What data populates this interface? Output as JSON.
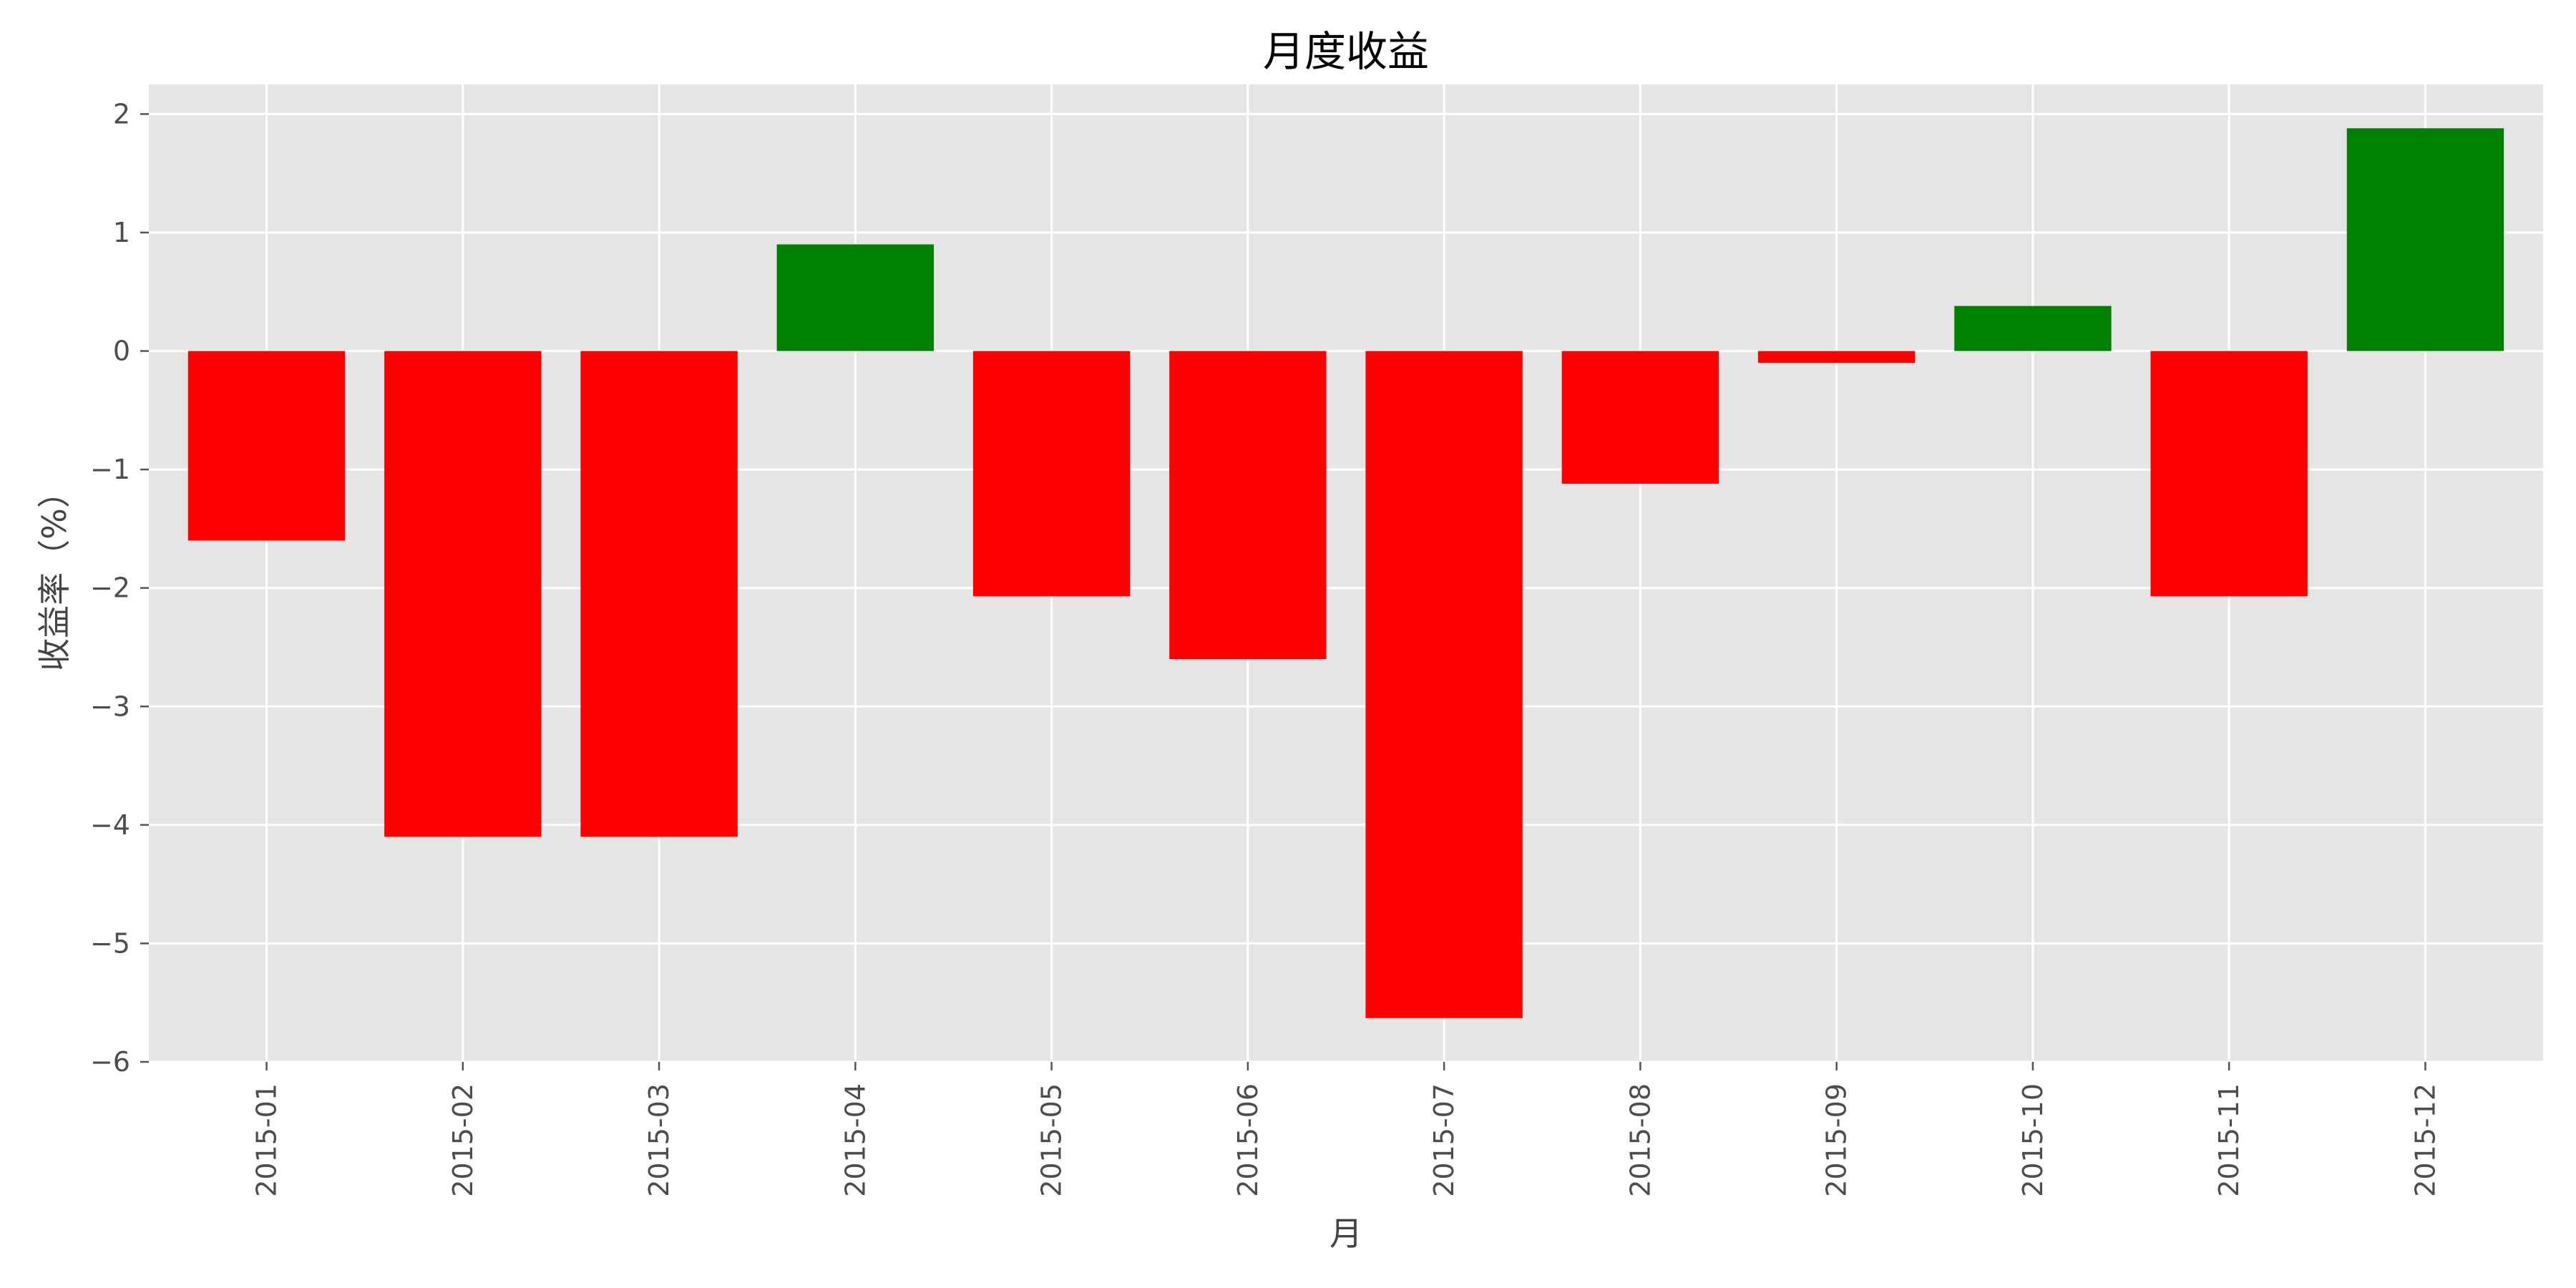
{
  "chart_data": {
    "type": "bar",
    "title": "月度收益",
    "xlabel": "月",
    "ylabel": "收益率（%）",
    "categories": [
      "2015-01",
      "2015-02",
      "2015-03",
      "2015-04",
      "2015-05",
      "2015-06",
      "2015-07",
      "2015-08",
      "2015-09",
      "2015-10",
      "2015-11",
      "2015-12"
    ],
    "values": [
      -1.6,
      -4.1,
      -4.1,
      0.9,
      -2.07,
      -2.6,
      -5.63,
      -1.12,
      -0.1,
      0.38,
      -2.07,
      1.88
    ],
    "ylim": [
      -6,
      2.25
    ],
    "yticks": [
      2,
      1,
      0,
      -1,
      -2,
      -3,
      -4,
      -5,
      -6
    ],
    "ytick_labels": [
      "2",
      "1",
      "0",
      "−1",
      "−2",
      "−3",
      "−4",
      "−5",
      "−6"
    ],
    "grid": true,
    "colors": {
      "positive": "#008000",
      "negative": "#ff0000",
      "background": "#e5e5e5"
    }
  }
}
